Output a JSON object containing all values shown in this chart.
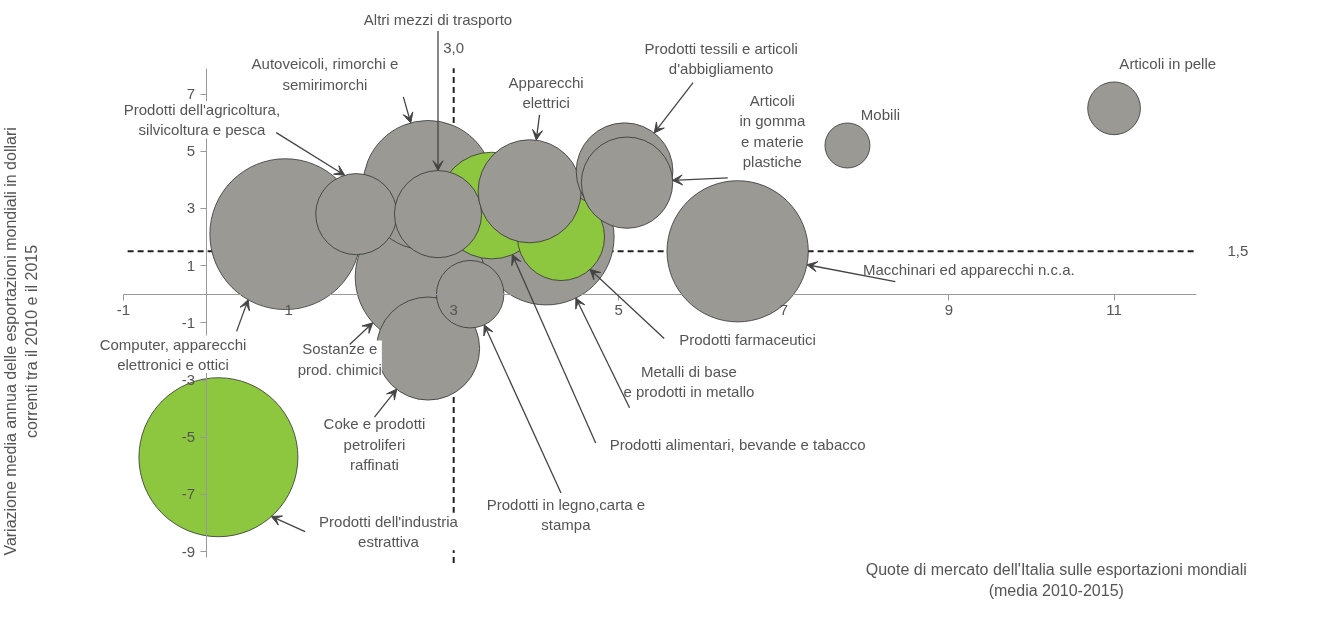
{
  "chart_data": {
    "type": "bubble",
    "xlabel": "Quote di mercato dell'Italia sulle esportazioni mondiali\n(media 2010-2015)",
    "ylabel": "Variazione media annua delle esportazioni mondiali in dollari\ncorrenti tra il 2010 e il 2015",
    "x": [
      0.96,
      0.15,
      2.63,
      2.69,
      2.69,
      4.12,
      6.44,
      1.82,
      3.46,
      2.81,
      4.3,
      3.2,
      3.92,
      5.07,
      5.1,
      7.77,
      11.0
    ],
    "values": [
      2.1,
      -5.7,
      0.6,
      3.8,
      -1.9,
      2.0,
      1.5,
      2.8,
      3.1,
      2.8,
      2.0,
      0.0,
      3.6,
      4.3,
      3.9,
      5.2,
      6.5
    ],
    "sizes": [
      0.9,
      1,
      0.73,
      0.67,
      0.42,
      0.73,
      0.79,
      0.26,
      0.45,
      0.3,
      0.3,
      0.18,
      0.42,
      0.37,
      0.33,
      0.08,
      0.11
    ],
    "colors": [
      "#9a9994",
      "#8dc63f",
      "#9a9994",
      "#9a9994",
      "#9a9994",
      "#9a9994",
      "#9a9994",
      "#9a9994",
      "#8dc63f",
      "#9a9994",
      "#8dc63f",
      "#9a9994",
      "#9a9994",
      "#9a9994",
      "#9a9994",
      "#9a9994",
      "#9a9994"
    ],
    "xlim": [
      -1,
      12
    ],
    "ylim": [
      -9.2,
      7.9
    ],
    "xticks": [
      -1,
      1,
      3,
      5,
      7,
      9,
      11
    ],
    "yticks": [
      -9,
      -7,
      -5,
      -3,
      -1,
      1,
      3,
      5,
      7
    ],
    "grid": false,
    "ref_lines": [
      {
        "axis": "x",
        "value": 3.0,
        "label": "3,0",
        "line_style": "dashed"
      },
      {
        "axis": "y",
        "value": 1.5,
        "label": "1,5",
        "line_style": "dashed"
      }
    ],
    "annotations": [
      {
        "text": "Computer, apparecchi\nelettronici e ottici",
        "x": 0.51,
        "y": -0.19
      },
      {
        "text": "Prodotti dell'industria\nestrattiva",
        "x": 0.79,
        "y": -7.77
      },
      {
        "text": "Sostanze e\nprod. chimici",
        "x": 2.02,
        "y": -1.0
      },
      {
        "text": "Autoveicoli, rimorchi e\nsemirimorchi",
        "x": 2.48,
        "y": 5.99
      },
      {
        "text": "Coke e prodotti\npetroliferi\nraffinati",
        "x": 2.31,
        "y": -3.32
      },
      {
        "text": "Metalli di base\ne prodotti in metallo",
        "x": 4.48,
        "y": -0.13
      },
      {
        "text": "Macchinari ed apparecchi n.c.a.",
        "x": 7.28,
        "y": 1.03
      },
      {
        "text": "Prodotti dell'agricoltura,\nsilvicoltura e pesca",
        "x": 1.68,
        "y": 4.16
      },
      {
        "text": "Prodotti alimentari, bevande e tabacco",
        "x": 3.71,
        "y": 1.39
      },
      {
        "text": "Altri mezzi di trasporto",
        "x": 2.81,
        "y": 4.32
      },
      {
        "text": "Prodotti farmaceutici",
        "x": 4.65,
        "y": 0.87
      },
      {
        "text": "Prodotti in legno,carta e\nstampa",
        "x": 3.37,
        "y": -1.07
      },
      {
        "text": "Apparecchi\nelettrici",
        "x": 4.0,
        "y": 5.39
      },
      {
        "text": "Prodotti tessili e articoli\nd'abbigliamento",
        "x": 5.43,
        "y": 5.64
      },
      {
        "text": "Articoli\nin gomma\ne materie\nplastiche",
        "x": 5.65,
        "y": 3.98
      },
      "Mobili",
      "Articoli in pelle"
    ]
  }
}
